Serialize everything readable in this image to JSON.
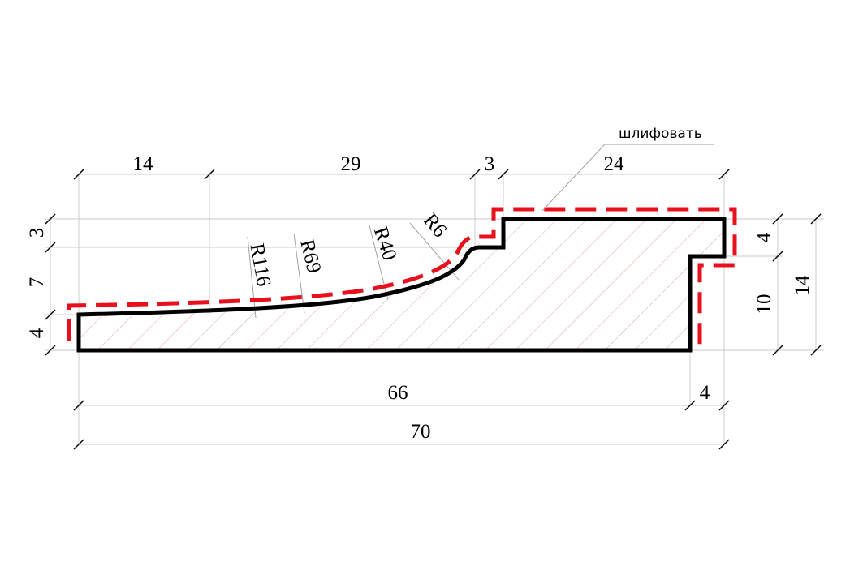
{
  "labels": {
    "top_dims": [
      "14",
      "29",
      "3",
      "24"
    ],
    "bottom_dims": [
      "66",
      "4",
      "70"
    ],
    "left_dims": [
      "3",
      "7",
      "4"
    ],
    "right_dims": [
      "4",
      "10",
      "14"
    ],
    "radii": [
      "R116",
      "R69",
      "R40",
      "R6"
    ],
    "note": "шлифовать"
  },
  "colors": {
    "profile": "#000000",
    "grind_line": "#e8101c",
    "hatch": "#d9a8a8"
  },
  "legend": {
    "grind_line_meaning": "шлифовать"
  }
}
